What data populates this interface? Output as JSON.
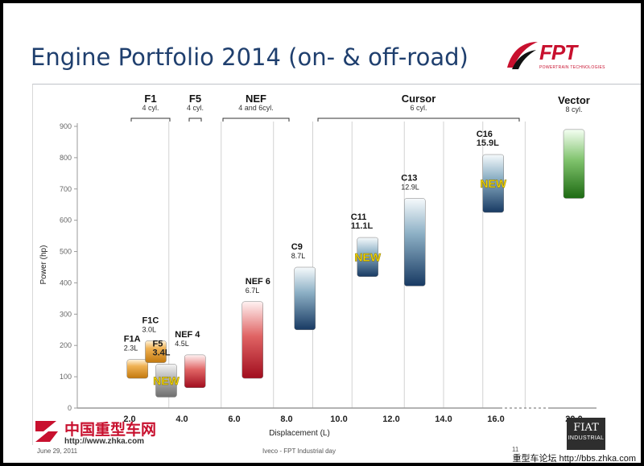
{
  "slide_title": "Engine Portfolio 2014 (on- & off-road)",
  "logo": {
    "name": "FPT",
    "tagline": "POWERTRAIN TECHNOLOGIES"
  },
  "chart_data": {
    "type": "floating-bar",
    "title": "",
    "xlabel": "Displacement (L)",
    "ylabel": "Power (hp)",
    "ylim": [
      0,
      900
    ],
    "yticks": [
      0,
      100,
      200,
      300,
      400,
      500,
      600,
      700,
      800,
      900
    ],
    "xticks": [
      "2.0",
      "4.0",
      "6.0",
      "8.0",
      "10.0",
      "12.0",
      "14.0",
      "16.0",
      "20.0"
    ],
    "grid": "vertical",
    "families": [
      {
        "name": "F1",
        "sub": "4 cyl."
      },
      {
        "name": "F5",
        "sub": "4 cyl."
      },
      {
        "name": "NEF",
        "sub": "4 and 6cyl."
      },
      {
        "name": "Cursor",
        "sub": "6 cyl."
      },
      {
        "name": "Vector",
        "sub": "8 cyl."
      }
    ],
    "engines": [
      {
        "name": "F1A",
        "disp": "2.3L",
        "displacement": 2.3,
        "min": 95,
        "max": 155,
        "color": "orange",
        "is_new": false
      },
      {
        "name": "F1C",
        "disp": "3.0L",
        "displacement": 3.0,
        "min": 145,
        "max": 215,
        "color": "orange",
        "is_new": false
      },
      {
        "name": "F5",
        "disp": "3.4L",
        "displacement": 3.4,
        "min": 35,
        "max": 140,
        "color": "gray",
        "is_new": true
      },
      {
        "name": "NEF 4",
        "disp": "4.5L",
        "displacement": 4.5,
        "min": 65,
        "max": 170,
        "color": "red",
        "is_new": false
      },
      {
        "name": "NEF 6",
        "disp": "6.7L",
        "displacement": 6.7,
        "min": 95,
        "max": 340,
        "color": "red",
        "is_new": false
      },
      {
        "name": "C9",
        "disp": "8.7L",
        "displacement": 8.7,
        "min": 250,
        "max": 450,
        "color": "blue",
        "is_new": false
      },
      {
        "name": "C11",
        "disp": "11.1L",
        "displacement": 11.1,
        "min": 420,
        "max": 545,
        "color": "blue",
        "is_new": true
      },
      {
        "name": "C13",
        "disp": "12.9L",
        "displacement": 12.9,
        "min": 390,
        "max": 670,
        "color": "blue",
        "is_new": false
      },
      {
        "name": "C16",
        "disp": "15.9L",
        "displacement": 15.9,
        "min": 625,
        "max": 810,
        "color": "blue",
        "is_new": true
      },
      {
        "name": "Vector",
        "disp": "20.0L",
        "displacement": 20.0,
        "min": 670,
        "max": 890,
        "color": "green",
        "is_new": false
      }
    ],
    "new_label": "NEW"
  },
  "watermark": {
    "site_name": "中国重型车网",
    "url": "http://www.zhka.com",
    "forum": "重型车论坛  http://bbs.zhka.com"
  },
  "footer": {
    "date": "June 29, 2011",
    "center": "Iveco - FPT Industrial day",
    "page": "11"
  },
  "fiat_logo": {
    "top": "FIAT",
    "bottom": "INDUSTRIAL"
  }
}
